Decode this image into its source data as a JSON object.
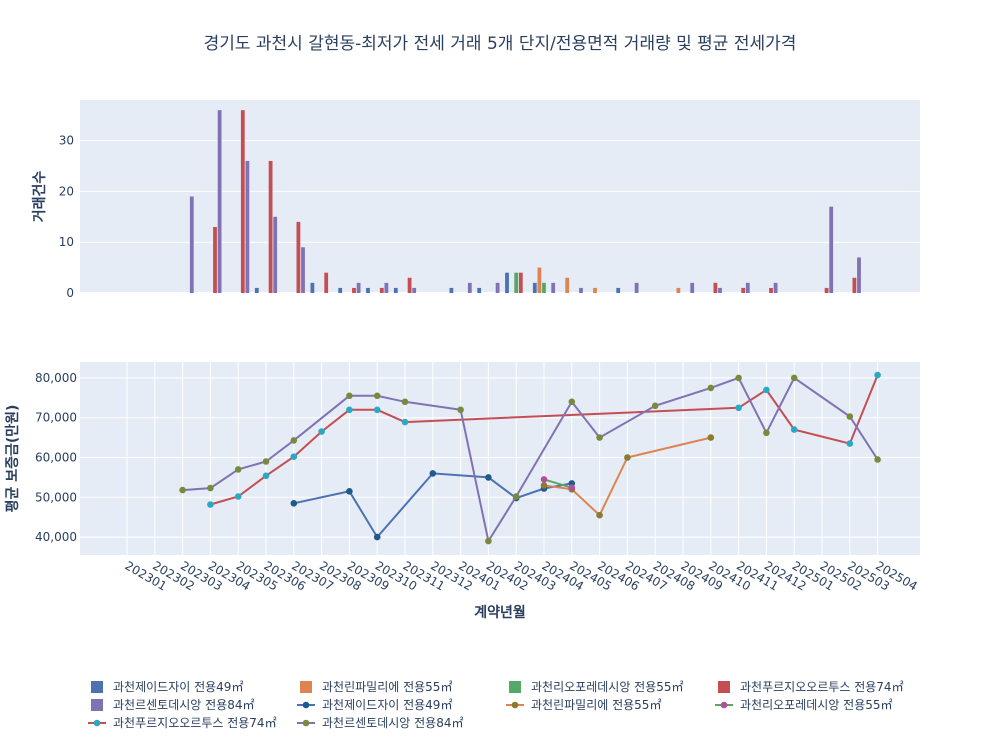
{
  "chart_data": {
    "title": "경기도 과천시 갈현동-최저가 전세 거래 5개 단지/전용면적 거래량 및 평균 전세가격",
    "xlabel": "계약년월",
    "x": [
      "202301",
      "202302",
      "202303",
      "202304",
      "202305",
      "202306",
      "202307",
      "202308",
      "202309",
      "202310",
      "202311",
      "202312",
      "202401",
      "202402",
      "202403",
      "202404",
      "202405",
      "202406",
      "202407",
      "202408",
      "202409",
      "202410",
      "202411",
      "202412",
      "202501",
      "202502",
      "202503",
      "202504"
    ],
    "colors": {
      "과천제이드자이 전용49㎡": "#4c72b0",
      "과천린파밀리에 전용55㎡": "#dd8452",
      "과천리오포레데시앙 전용55㎡": "#55a868",
      "과천푸르지오오르투스 전용74㎡": "#c44e52",
      "과천르센토데시앙 전용84㎡": "#8172b3"
    },
    "marker_colors": {
      "과천제이드자이 전용49㎡": "#1f5a8a",
      "과천린파밀리에 전용55㎡": "#8c7a2e",
      "과천리오포레데시앙 전용55㎡": "#b0509a",
      "과천푸르지오오르투스 전용74㎡": "#2aa9c4",
      "과천르센토데시앙 전용84㎡": "#7a8a3c"
    },
    "charts": [
      {
        "type": "bar",
        "ylabel": "거래건수",
        "ylim": [
          0,
          38
        ],
        "yticks": [
          0,
          10,
          20,
          30
        ],
        "series": [
          {
            "name": "과천제이드자이 전용49㎡",
            "values": [
              0,
              0,
              0,
              0,
              0,
              1,
              0,
              2,
              1,
              1,
              1,
              0,
              1,
              1,
              4,
              2,
              0,
              0,
              1,
              0,
              0,
              0,
              0,
              0,
              0,
              0,
              0,
              0
            ]
          },
          {
            "name": "과천린파밀리에 전용55㎡",
            "values": [
              0,
              0,
              0,
              0,
              0,
              0,
              0,
              0,
              0,
              0,
              0,
              0,
              0,
              0,
              0,
              5,
              3,
              1,
              0,
              0,
              1,
              0,
              0,
              0,
              0,
              0,
              0,
              0
            ]
          },
          {
            "name": "과천리오포레데시앙 전용55㎡",
            "values": [
              0,
              0,
              0,
              0,
              0,
              0,
              0,
              0,
              0,
              0,
              0,
              0,
              0,
              0,
              4,
              2,
              0,
              0,
              0,
              0,
              0,
              0,
              0,
              0,
              0,
              0,
              0,
              0
            ]
          },
          {
            "name": "과천푸르지오오르투스 전용74㎡",
            "values": [
              0,
              0,
              0,
              13,
              36,
              26,
              14,
              4,
              1,
              1,
              3,
              0,
              0,
              0,
              4,
              0,
              0,
              0,
              0,
              0,
              0,
              2,
              1,
              1,
              0,
              1,
              3,
              0
            ]
          },
          {
            "name": "과천르센토데시앙 전용84㎡",
            "values": [
              0,
              0,
              19,
              36,
              26,
              15,
              9,
              0,
              2,
              2,
              1,
              0,
              2,
              2,
              0,
              2,
              1,
              0,
              2,
              0,
              2,
              1,
              2,
              2,
              0,
              17,
              7,
              0
            ]
          }
        ]
      },
      {
        "type": "line",
        "ylabel": "평균 보증금(만원)",
        "ylim": [
          35500,
          84000
        ],
        "yticks": [
          40000,
          50000,
          60000,
          70000,
          80000
        ],
        "ytick_labels": [
          "40,000",
          "50,000",
          "60,000",
          "70,000",
          "80,000"
        ],
        "series": [
          {
            "name": "과천제이드자이 전용49㎡",
            "points": [
              [
                "202307",
                48500
              ],
              [
                "202309",
                51500
              ],
              [
                "202310",
                40000
              ],
              [
                "202312",
                56000
              ],
              [
                "202402",
                55000
              ],
              [
                "202403",
                49800
              ],
              [
                "202404",
                52200
              ],
              [
                "202405",
                53500
              ]
            ]
          },
          {
            "name": "과천린파밀리에 전용55㎡",
            "points": [
              [
                "202404",
                53000
              ],
              [
                "202405",
                52000
              ],
              [
                "202406",
                45500
              ],
              [
                "202407",
                60000
              ],
              [
                "202410",
                65000
              ]
            ]
          },
          {
            "name": "과천리오포레데시앙 전용55㎡",
            "points": [
              [
                "202404",
                54500
              ],
              [
                "202405",
                52400
              ]
            ]
          },
          {
            "name": "과천푸르지오오르투스 전용74㎡",
            "points": [
              [
                "202304",
                48200
              ],
              [
                "202305",
                50200
              ],
              [
                "202306",
                55400
              ],
              [
                "202307",
                60200
              ],
              [
                "202308",
                66500
              ],
              [
                "202309",
                72000
              ],
              [
                "202310",
                72000
              ],
              [
                "202311",
                68900
              ],
              [
                "202411",
                72500
              ],
              [
                "202412",
                77000
              ],
              [
                "202501",
                67000
              ],
              [
                "202503",
                63500
              ],
              [
                "202504",
                80700
              ]
            ]
          },
          {
            "name": "과천르센토데시앙 전용84㎡",
            "points": [
              [
                "202303",
                51800
              ],
              [
                "202304",
                52300
              ],
              [
                "202305",
                57000
              ],
              [
                "202306",
                59000
              ],
              [
                "202307",
                64300
              ],
              [
                "202309",
                75500
              ],
              [
                "202310",
                75500
              ],
              [
                "202311",
                74000
              ],
              [
                "202401",
                72000
              ],
              [
                "202402",
                39000
              ],
              [
                "202403",
                50200
              ],
              [
                "202405",
                74000
              ],
              [
                "202406",
                65000
              ],
              [
                "202408",
                73000
              ],
              [
                "202410",
                77500
              ],
              [
                "202411",
                80000
              ],
              [
                "202412",
                66200
              ],
              [
                "202501",
                80000
              ],
              [
                "202503",
                70300
              ],
              [
                "202504",
                59500
              ]
            ]
          }
        ]
      }
    ],
    "legend": {
      "placement": "bottom",
      "items": [
        {
          "label": "과천제이드자이 전용49㎡",
          "kind": "bar",
          "series": "과천제이드자이 전용49㎡"
        },
        {
          "label": "과천린파밀리에 전용55㎡",
          "kind": "bar",
          "series": "과천린파밀리에 전용55㎡"
        },
        {
          "label": "과천리오포레데시앙 전용55㎡",
          "kind": "bar",
          "series": "과천리오포레데시앙 전용55㎡"
        },
        {
          "label": "과천푸르지오오르투스 전용74㎡",
          "kind": "bar",
          "series": "과천푸르지오오르투스 전용74㎡"
        },
        {
          "label": "과천르센토데시앙 전용84㎡",
          "kind": "bar",
          "series": "과천르센토데시앙 전용84㎡"
        },
        {
          "label": "과천제이드자이 전용49㎡",
          "kind": "line",
          "series": "과천제이드자이 전용49㎡"
        },
        {
          "label": "과천린파밀리에 전용55㎡",
          "kind": "line",
          "series": "과천린파밀리에 전용55㎡"
        },
        {
          "label": "과천리오포레데시앙 전용55㎡",
          "kind": "line",
          "series": "과천리오포레데시앙 전용55㎡"
        },
        {
          "label": "과천푸르지오오르투스 전용74㎡",
          "kind": "line",
          "series": "과천푸르지오오르투스 전용74㎡"
        },
        {
          "label": "과천르센토데시앙 전용84㎡",
          "kind": "line",
          "series": "과천르센토데시앙 전용84㎡"
        }
      ]
    }
  }
}
